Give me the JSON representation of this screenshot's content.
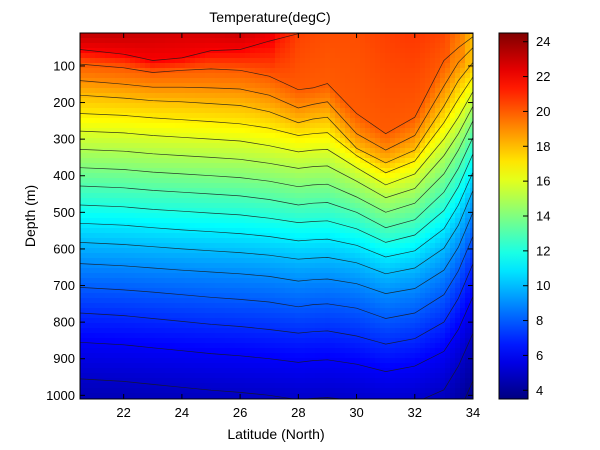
{
  "chart_data": {
    "type": "heatmap",
    "title": "Temperature(degC)",
    "xlabel": "Latitude (North)",
    "ylabel": "Depth (m)",
    "xlim": [
      20.5,
      34
    ],
    "ylim": [
      1010,
      10
    ],
    "y_reversed": true,
    "x_ticks": [
      "22",
      "24",
      "26",
      "28",
      "30",
      "32",
      "34"
    ],
    "y_ticks": [
      "100",
      "200",
      "300",
      "400",
      "500",
      "600",
      "700",
      "800",
      "900",
      "1000"
    ],
    "colorbar": {
      "min": 3.5,
      "max": 24.5,
      "ticks": [
        "4",
        "6",
        "8",
        "10",
        "12",
        "14",
        "16",
        "18",
        "20",
        "22",
        "24"
      ],
      "colormap": "jet"
    },
    "x": [
      20.5,
      22,
      23,
      24,
      25,
      26,
      27,
      28,
      28.5,
      29,
      30,
      31,
      32,
      33,
      33.5,
      34
    ],
    "surface_temperature": [
      23.5,
      23.3,
      23.0,
      22.8,
      22.9,
      23.2,
      22.3,
      20.6,
      20.4,
      20.3,
      20.3,
      20.6,
      20.8,
      20.5,
      19.5,
      18.0
    ],
    "isotherm_depths": [
      {
        "temperature": 22,
        "depths": [
          55,
          68,
          85,
          78,
          58,
          55,
          32,
          12,
          12,
          12,
          12,
          12,
          12,
          12,
          12,
          12
        ]
      },
      {
        "temperature": 20,
        "depths": [
          95,
          105,
          118,
          112,
          108,
          112,
          128,
          165,
          160,
          148,
          230,
          285,
          240,
          85,
          50,
          20
        ]
      },
      {
        "temperature": 19,
        "depths": [
          140,
          150,
          158,
          158,
          160,
          163,
          180,
          215,
          205,
          198,
          285,
          330,
          290,
          155,
          90,
          50
        ]
      },
      {
        "temperature": 18,
        "depths": [
          180,
          188,
          195,
          198,
          203,
          208,
          225,
          255,
          245,
          240,
          325,
          365,
          330,
          210,
          140,
          90
        ]
      },
      {
        "temperature": 17,
        "depths": [
          230,
          235,
          242,
          247,
          252,
          258,
          270,
          290,
          285,
          282,
          345,
          392,
          360,
          255,
          190,
          130
        ]
      },
      {
        "temperature": 16,
        "depths": [
          278,
          283,
          290,
          295,
          300,
          305,
          318,
          335,
          330,
          328,
          378,
          425,
          395,
          300,
          240,
          170
        ]
      },
      {
        "temperature": 15,
        "depths": [
          328,
          333,
          340,
          345,
          350,
          355,
          366,
          380,
          375,
          373,
          415,
          460,
          435,
          345,
          285,
          210
        ]
      },
      {
        "temperature": 14,
        "depths": [
          378,
          383,
          390,
          395,
          400,
          405,
          415,
          430,
          425,
          423,
          458,
          500,
          475,
          395,
          330,
          250
        ]
      },
      {
        "temperature": 13,
        "depths": [
          428,
          433,
          440,
          445,
          450,
          455,
          465,
          480,
          475,
          473,
          500,
          542,
          520,
          445,
          380,
          295
        ]
      },
      {
        "temperature": 12,
        "depths": [
          480,
          485,
          492,
          497,
          502,
          507,
          516,
          528,
          525,
          523,
          545,
          582,
          562,
          495,
          430,
          340
        ]
      },
      {
        "temperature": 11,
        "depths": [
          530,
          535,
          542,
          548,
          553,
          558,
          566,
          578,
          575,
          573,
          590,
          622,
          605,
          545,
          480,
          390
        ]
      },
      {
        "temperature": 10,
        "depths": [
          582,
          588,
          594,
          600,
          605,
          610,
          617,
          628,
          625,
          623,
          638,
          668,
          652,
          598,
          535,
          440
        ]
      },
      {
        "temperature": 9,
        "depths": [
          640,
          646,
          652,
          658,
          663,
          668,
          675,
          688,
          684,
          682,
          695,
          722,
          708,
          658,
          595,
          500
        ]
      },
      {
        "temperature": 8,
        "depths": [
          705,
          712,
          718,
          725,
          732,
          738,
          745,
          758,
          752,
          750,
          762,
          790,
          775,
          725,
          660,
          565
        ]
      },
      {
        "temperature": 7,
        "depths": [
          775,
          782,
          790,
          798,
          806,
          812,
          820,
          830,
          826,
          824,
          838,
          860,
          845,
          800,
          735,
          640
        ]
      },
      {
        "temperature": 6,
        "depths": [
          855,
          862,
          870,
          878,
          886,
          892,
          900,
          910,
          905,
          903,
          915,
          935,
          920,
          880,
          820,
          730
        ]
      },
      {
        "temperature": 5,
        "depths": [
          955,
          962,
          970,
          978,
          986,
          992,
          1000,
          1012,
          1008,
          1006,
          1015,
          1030,
          1020,
          985,
          920,
          830
        ]
      },
      {
        "temperature": 4,
        "depths": [
          1090,
          1095,
          1100,
          1105,
          1110,
          1115,
          1120,
          1130,
          1126,
          1124,
          1135,
          1150,
          1140,
          1110,
          1050,
          960
        ]
      }
    ]
  }
}
